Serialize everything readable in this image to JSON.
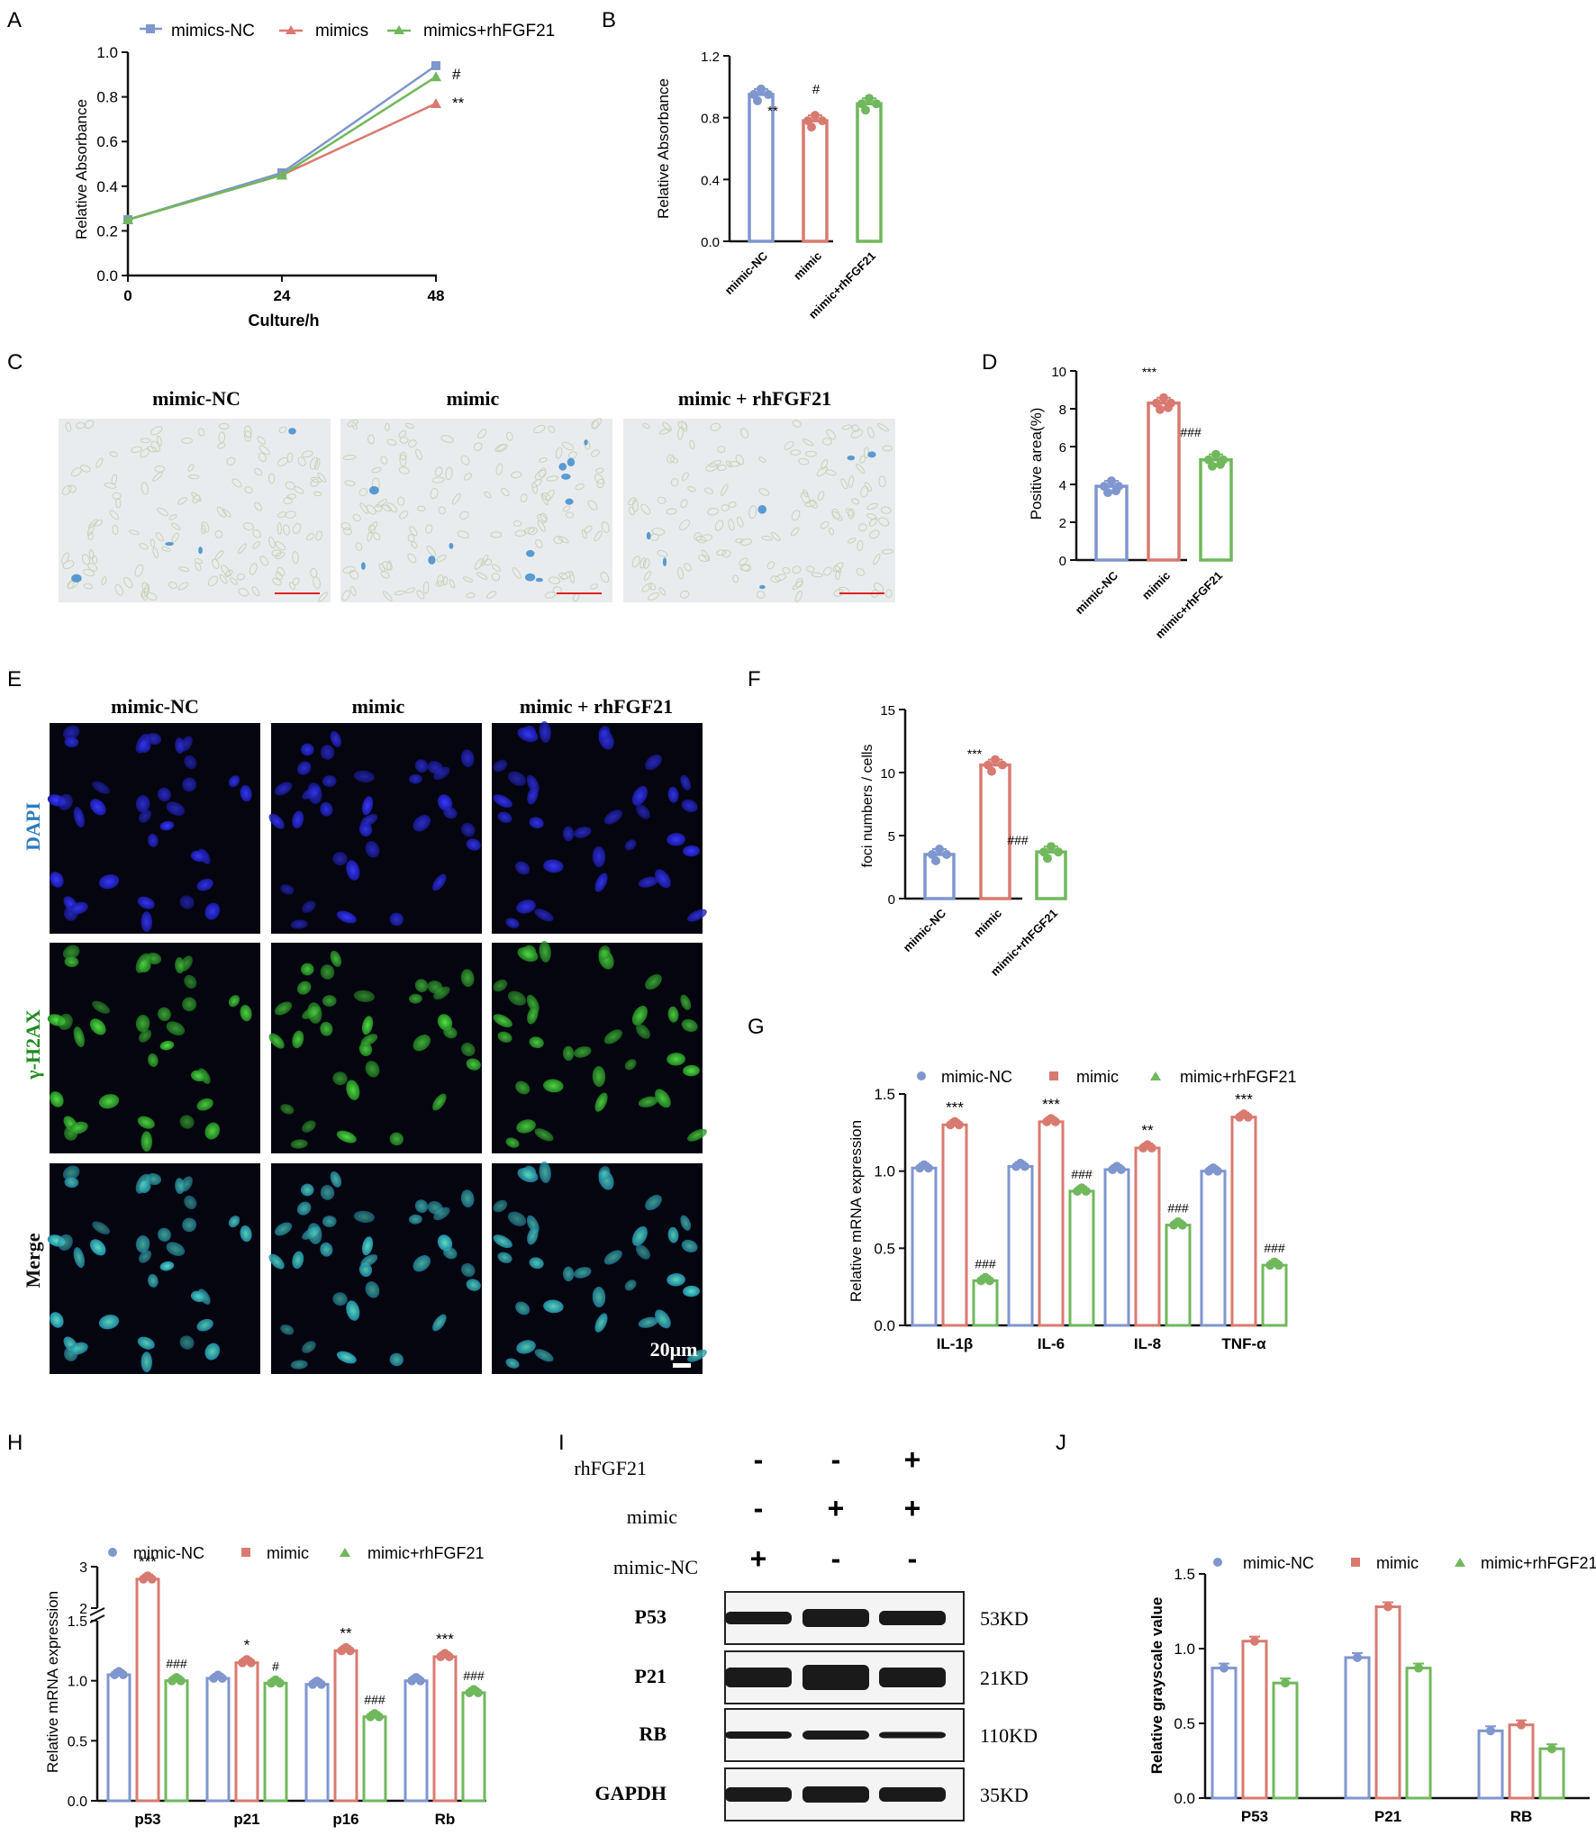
{
  "colors": {
    "nc": "#7f96cf",
    "mimic": "#d97a70",
    "rh": "#70b85c",
    "black": "#111111"
  },
  "panels": {
    "A": {
      "label": "A",
      "legend": [
        "mimics-NC",
        "mimics",
        "mimics+rhFGF21"
      ],
      "xlabel": "Culture/h",
      "ylabel": "Relative Absorbance",
      "sig": [
        "#",
        "**"
      ]
    },
    "B": {
      "label": "B",
      "ylabel": "Relative Absorbance",
      "categories": [
        "mimic-NC",
        "mimic",
        "mimic+rhFGF21"
      ],
      "sig": [
        "**",
        "#"
      ]
    },
    "C": {
      "label": "C",
      "titles": [
        "mimic-NC",
        "mimic",
        "mimic + rhFGF21"
      ]
    },
    "D": {
      "label": "D",
      "ylabel": "Positive area(%)",
      "categories": [
        "mimic-NC",
        "mimic",
        "mimic+rhFGF21"
      ],
      "sig": [
        "***",
        "###"
      ]
    },
    "E": {
      "label": "E",
      "titles": [
        "mimic-NC",
        "mimic",
        "mimic + rhFGF21"
      ],
      "rows": [
        "DAPI",
        "γ-H2AX",
        "Merge"
      ],
      "scale": "20μm"
    },
    "F": {
      "label": "F",
      "ylabel": "foci numbers / cells",
      "categories": [
        "mimic-NC",
        "mimic",
        "mimic+rhFGF21"
      ],
      "sig": [
        "***",
        "###"
      ]
    },
    "G": {
      "label": "G",
      "legend": [
        "mimic-NC",
        "mimic",
        "mimic+rhFGF21"
      ],
      "ylabel": "Relative mRNA expression",
      "categories": [
        "IL-1β",
        "IL-6",
        "IL-8",
        "TNF-α"
      ],
      "sig_mimic": [
        "***",
        "***",
        "**",
        "***"
      ],
      "sig_rh": [
        "###",
        "###",
        "###",
        "###"
      ]
    },
    "H": {
      "label": "H",
      "legend": [
        "mimic-NC",
        "mimic",
        "mimic+rhFGF21"
      ],
      "ylabel": "Relative mRNA expression",
      "categories": [
        "p53",
        "p21",
        "p16",
        "Rb"
      ],
      "sig_mimic": [
        "***",
        "*",
        "**",
        "***"
      ],
      "sig_rh": [
        "###",
        "#",
        "###",
        "###"
      ]
    },
    "I": {
      "label": "I",
      "conditions": [
        "rhFGF21",
        "mimic",
        "mimic-NC"
      ],
      "signs": [
        [
          "-",
          "-",
          "+"
        ],
        [
          "-",
          "+",
          "+"
        ],
        [
          "+",
          "-",
          "-"
        ]
      ],
      "bands": [
        "P53",
        "P21",
        "RB",
        "GAPDH"
      ],
      "sizes": [
        "53KD",
        "21KD",
        "110KD",
        "35KD"
      ]
    },
    "J": {
      "label": "J",
      "legend": [
        "mimic-NC",
        "mimic",
        "mimic+rhFGF21"
      ],
      "ylabel": "Relative grayscale value",
      "categories": [
        "P53",
        "P21",
        "RB"
      ]
    }
  },
  "chart_data": [
    {
      "panel": "A",
      "type": "line",
      "x": [
        0,
        24,
        48
      ],
      "xlabel": "Culture/h",
      "ylabel": "Relative Absorbance",
      "ylim": [
        0,
        1.0
      ],
      "yticks": [
        "0.0",
        "0.2",
        "0.4",
        "0.6",
        "0.8",
        "1.0"
      ],
      "xticks": [
        "0",
        "24",
        "48"
      ],
      "series": [
        {
          "name": "mimics-NC",
          "values": [
            0.25,
            0.46,
            0.94
          ]
        },
        {
          "name": "mimics",
          "values": [
            0.25,
            0.45,
            0.77
          ]
        },
        {
          "name": "mimics+rhFGF21",
          "values": [
            0.25,
            0.45,
            0.89
          ]
        }
      ]
    },
    {
      "panel": "B",
      "type": "bar",
      "categories": [
        "mimic-NC",
        "mimic",
        "mimic+rhFGF21"
      ],
      "values": [
        0.95,
        0.78,
        0.89
      ],
      "ylabel": "Relative Absorbance",
      "ylim": [
        0,
        1.2
      ],
      "yticks": [
        "0.0",
        "0.4",
        "0.8",
        "1.2"
      ]
    },
    {
      "panel": "D",
      "type": "bar",
      "categories": [
        "mimic-NC",
        "mimic",
        "mimic+rhFGF21"
      ],
      "values": [
        3.9,
        8.3,
        5.3
      ],
      "ylabel": "Positive area(%)",
      "ylim": [
        0,
        10
      ],
      "yticks": [
        "0",
        "2",
        "4",
        "6",
        "8",
        "10"
      ]
    },
    {
      "panel": "F",
      "type": "bar",
      "categories": [
        "mimic-NC",
        "mimic",
        "mimic+rhFGF21"
      ],
      "values": [
        3.5,
        10.6,
        3.7
      ],
      "ylabel": "foci numbers / cells",
      "ylim": [
        0,
        15
      ],
      "yticks": [
        "0",
        "5",
        "10",
        "15"
      ]
    },
    {
      "panel": "G",
      "type": "bar",
      "categories": [
        "IL-1β",
        "IL-6",
        "IL-8",
        "TNF-α"
      ],
      "ylabel": "Relative mRNA expression",
      "ylim": [
        0,
        1.5
      ],
      "yticks": [
        "0.0",
        "0.5",
        "1.0",
        "1.5"
      ],
      "series": [
        {
          "name": "mimic-NC",
          "values": [
            1.02,
            1.03,
            1.01,
            1.0
          ]
        },
        {
          "name": "mimic",
          "values": [
            1.3,
            1.32,
            1.15,
            1.35
          ]
        },
        {
          "name": "mimic+rhFGF21",
          "values": [
            0.29,
            0.87,
            0.65,
            0.39
          ]
        }
      ]
    },
    {
      "panel": "H",
      "type": "bar",
      "categories": [
        "p53",
        "p21",
        "p16",
        "Rb"
      ],
      "ylabel": "Relative mRNA expression",
      "ylim": [
        0,
        3
      ],
      "axis_break": [
        1.5,
        2
      ],
      "yticks": [
        "0.0",
        "0.5",
        "1.0",
        "1.5",
        "2",
        "3"
      ],
      "series": [
        {
          "name": "mimic-NC",
          "values": [
            1.05,
            1.02,
            0.97,
            1.0
          ]
        },
        {
          "name": "mimic",
          "values": [
            2.7,
            1.15,
            1.25,
            1.2
          ]
        },
        {
          "name": "mimic+rhFGF21",
          "values": [
            1.0,
            0.98,
            0.7,
            0.9
          ]
        }
      ]
    },
    {
      "panel": "J",
      "type": "bar",
      "categories": [
        "P53",
        "P21",
        "RB"
      ],
      "ylabel": "Relative grayscale value",
      "ylim": [
        0,
        1.5
      ],
      "yticks": [
        "0.0",
        "0.5",
        "1.0",
        "1.5"
      ],
      "series": [
        {
          "name": "mimic-NC",
          "values": [
            0.87,
            0.94,
            0.45
          ]
        },
        {
          "name": "mimic",
          "values": [
            1.05,
            1.28,
            0.49
          ]
        },
        {
          "name": "mimic+rhFGF21",
          "values": [
            0.77,
            0.87,
            0.33
          ]
        }
      ]
    }
  ]
}
